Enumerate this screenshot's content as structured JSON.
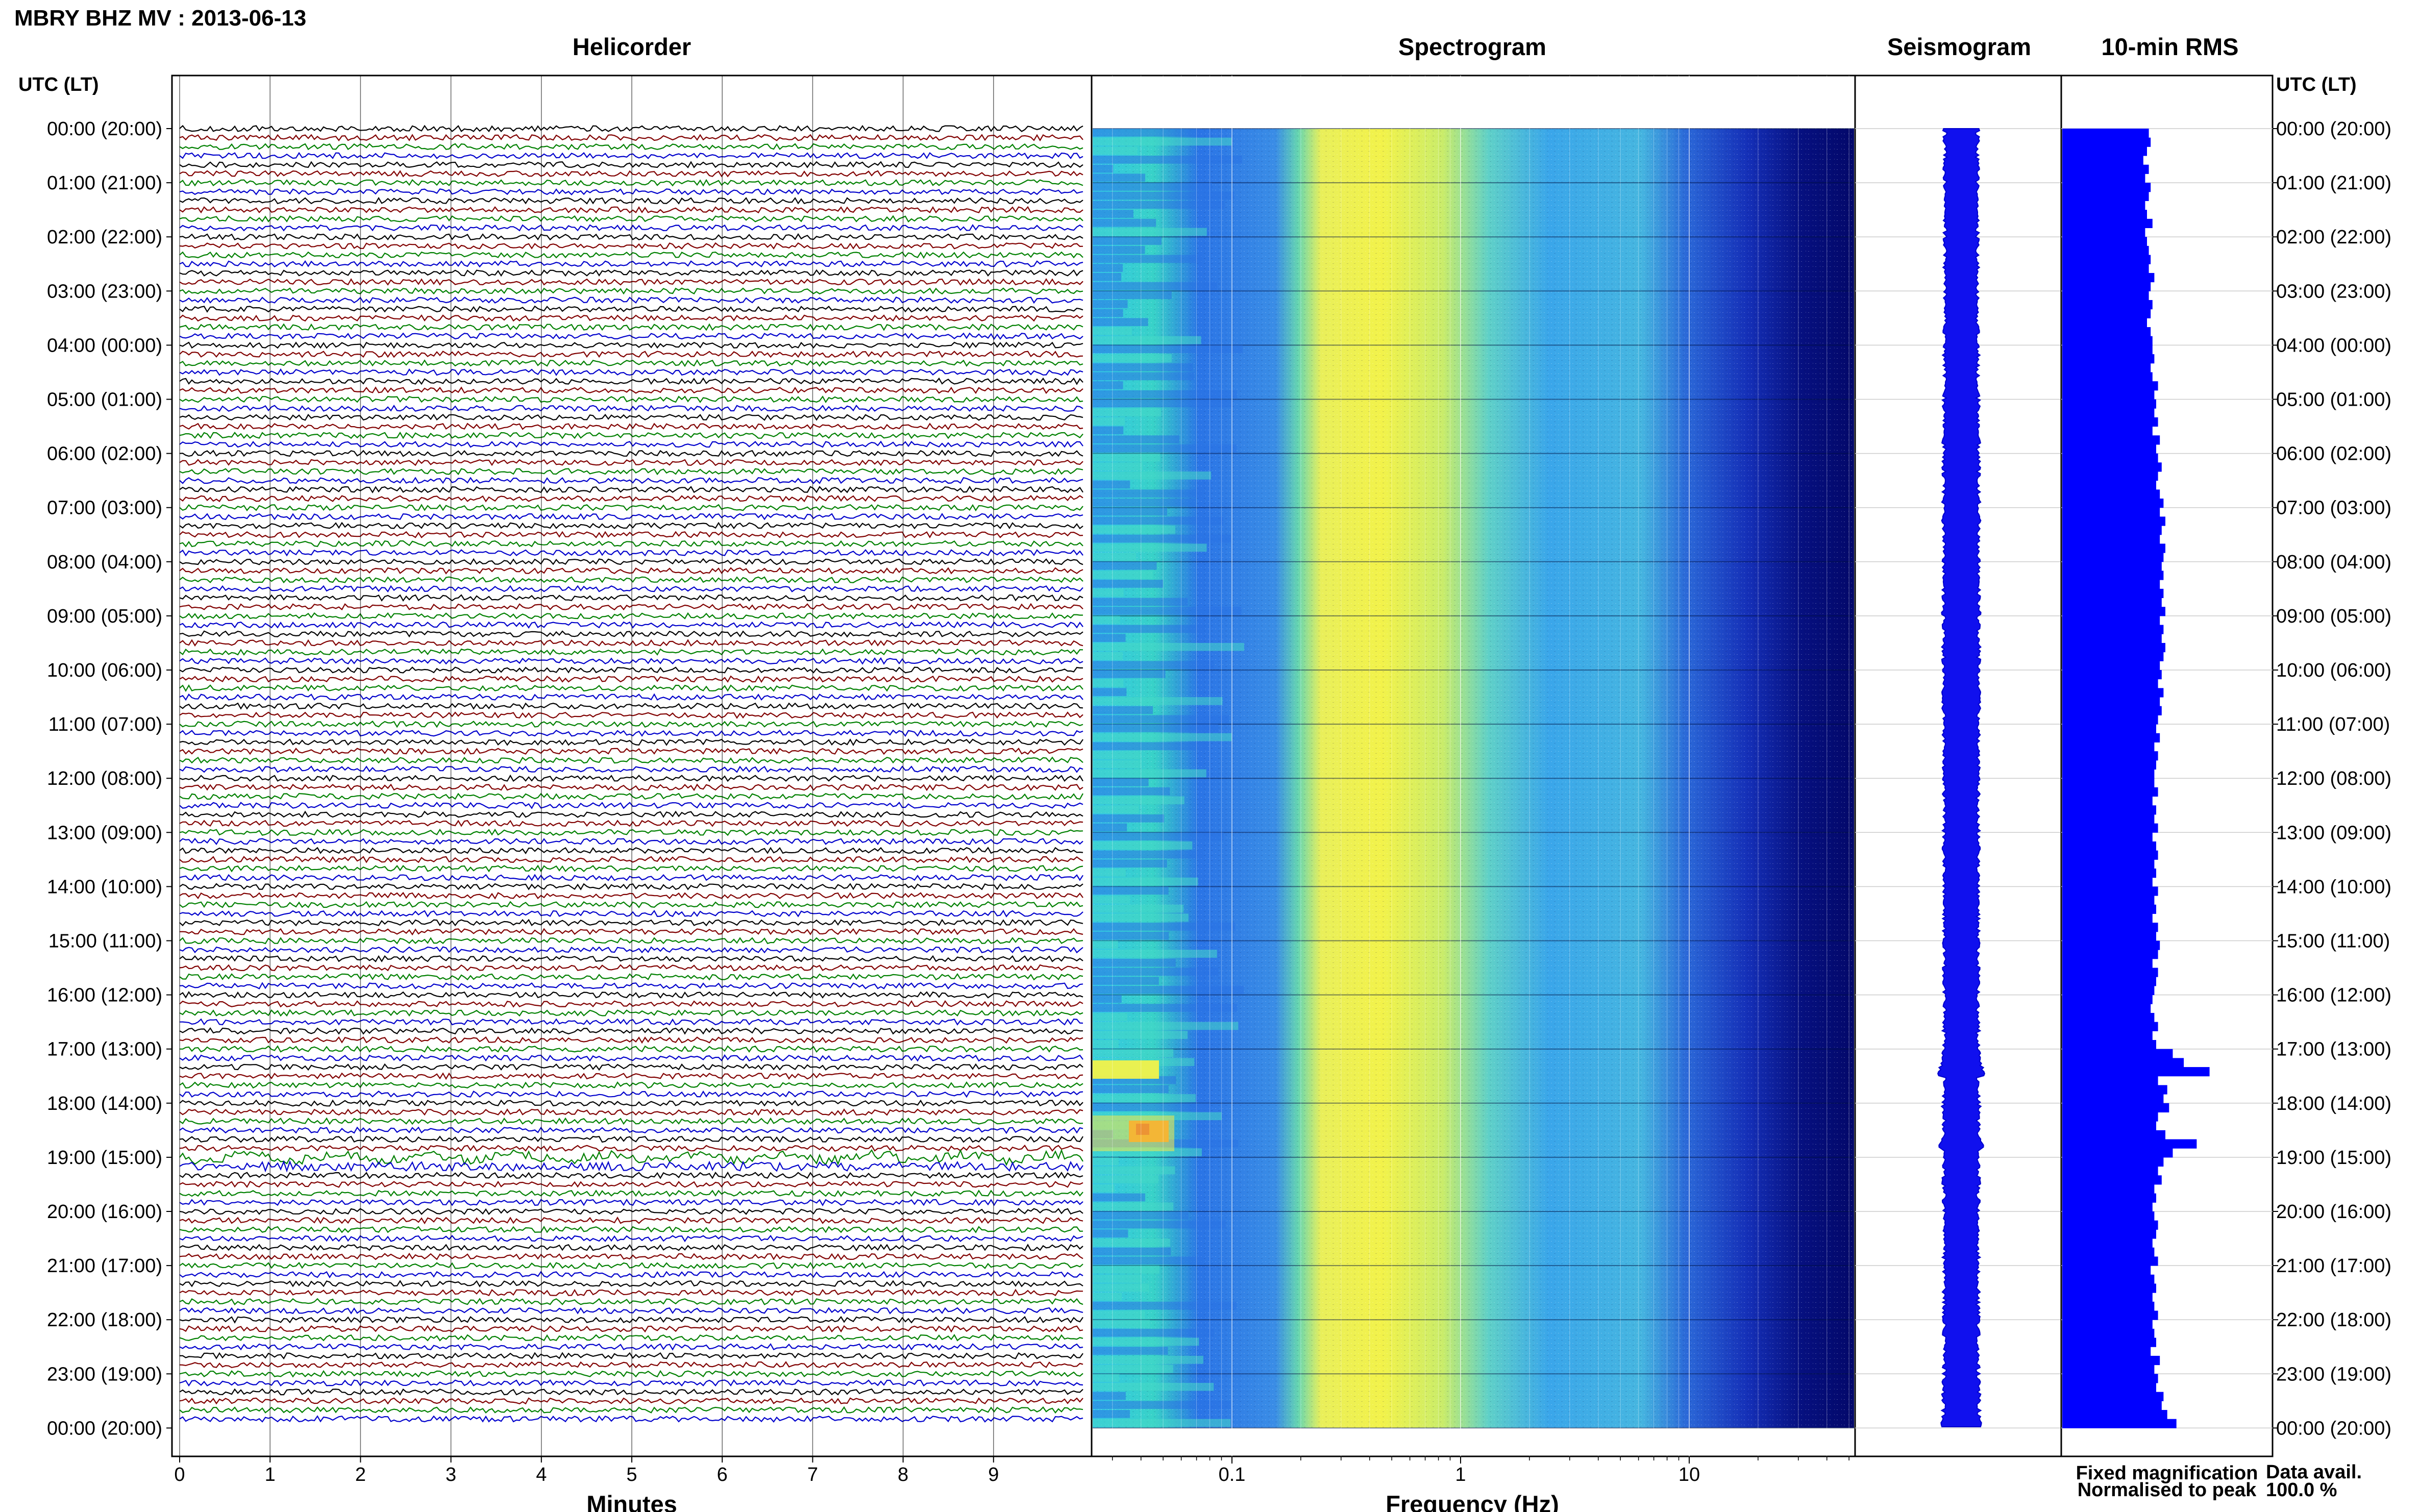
{
  "title": "MBRY BHZ MV : 2013-06-13",
  "panels": {
    "helicorder": "Helicorder",
    "spectrogram": "Spectrogram",
    "seismogram": "Seismogram",
    "rms": "10-min RMS"
  },
  "time_axis": {
    "header": "UTC (LT)",
    "labels": [
      "00:00 (20:00)",
      "01:00 (21:00)",
      "02:00 (22:00)",
      "03:00 (23:00)",
      "04:00 (00:00)",
      "05:00 (01:00)",
      "06:00 (02:00)",
      "07:00 (03:00)",
      "08:00 (04:00)",
      "09:00 (05:00)",
      "10:00 (06:00)",
      "11:00 (07:00)",
      "12:00 (08:00)",
      "13:00 (09:00)",
      "14:00 (10:00)",
      "15:00 (11:00)",
      "16:00 (12:00)",
      "17:00 (13:00)",
      "18:00 (14:00)",
      "19:00 (15:00)",
      "20:00 (16:00)",
      "21:00 (17:00)",
      "22:00 (18:00)",
      "23:00 (19:00)",
      "00:00 (20:00)"
    ]
  },
  "helicorder_axis": {
    "label": "Minutes",
    "ticks": [
      "0",
      "1",
      "2",
      "3",
      "4",
      "5",
      "6",
      "7",
      "8",
      "9"
    ]
  },
  "frequency_axis": {
    "label": "Frequency (Hz)",
    "ticks": [
      "0.1",
      "1",
      "10"
    ],
    "scale": "log"
  },
  "legend": {
    "fixed": "Fixed magnification",
    "normalised": "Normalised to peak",
    "fixed_color": "#0000ff",
    "normalised_color": "#ff0000"
  },
  "data_availability": {
    "label": "Data avail.",
    "value": "100.0 %"
  },
  "colors": {
    "trace_cycle": [
      "#000000",
      "#800000",
      "#008000",
      "#0000cc"
    ],
    "rms_bar": "#0000ff"
  },
  "chart_data": {
    "type": "bar",
    "title": "10-min RMS",
    "orientation": "horizontal",
    "categories_note": "144 ten-minute bins, 2013-06-13 00:00-24:00 UTC",
    "values_relative": [
      0.47,
      0.48,
      0.46,
      0.44,
      0.47,
      0.45,
      0.48,
      0.47,
      0.45,
      0.46,
      0.49,
      0.45,
      0.46,
      0.47,
      0.48,
      0.47,
      0.5,
      0.48,
      0.47,
      0.49,
      0.48,
      0.46,
      0.48,
      0.49,
      0.49,
      0.5,
      0.48,
      0.49,
      0.52,
      0.5,
      0.51,
      0.5,
      0.52,
      0.49,
      0.53,
      0.51,
      0.52,
      0.54,
      0.52,
      0.51,
      0.53,
      0.55,
      0.53,
      0.56,
      0.54,
      0.53,
      0.56,
      0.55,
      0.54,
      0.55,
      0.53,
      0.55,
      0.54,
      0.56,
      0.53,
      0.55,
      0.54,
      0.56,
      0.55,
      0.53,
      0.54,
      0.52,
      0.55,
      0.53,
      0.54,
      0.52,
      0.51,
      0.53,
      0.5,
      0.52,
      0.51,
      0.5,
      0.5,
      0.52,
      0.49,
      0.51,
      0.5,
      0.52,
      0.49,
      0.51,
      0.52,
      0.5,
      0.51,
      0.49,
      0.52,
      0.5,
      0.51,
      0.49,
      0.52,
      0.51,
      0.53,
      0.52,
      0.49,
      0.52,
      0.51,
      0.5,
      0.49,
      0.48,
      0.5,
      0.52,
      0.49,
      0.51,
      0.6,
      0.66,
      0.8,
      0.52,
      0.57,
      0.55,
      0.58,
      0.52,
      0.51,
      0.56,
      0.73,
      0.6,
      0.55,
      0.52,
      0.54,
      0.5,
      0.51,
      0.49,
      0.5,
      0.52,
      0.51,
      0.49,
      0.5,
      0.52,
      0.48,
      0.5,
      0.51,
      0.49,
      0.5,
      0.52,
      0.49,
      0.5,
      0.51,
      0.48,
      0.53,
      0.5,
      0.52,
      0.51,
      0.55,
      0.54,
      0.57,
      0.62
    ],
    "xlabel": "",
    "ylabel": ""
  }
}
